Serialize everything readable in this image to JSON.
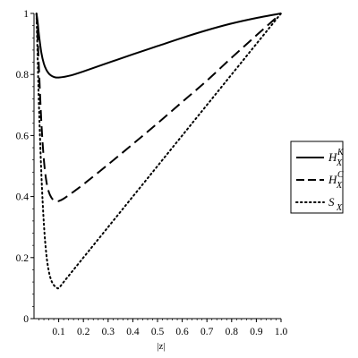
{
  "chart_data": {
    "type": "line",
    "title": "",
    "xlabel": "|z|",
    "ylabel": "",
    "xlim": [
      0,
      1.0
    ],
    "ylim": [
      0,
      1
    ],
    "grid": false,
    "legend_position": "right",
    "x_ticks": [
      "0.1",
      "0.2",
      "0.3",
      "0.4",
      "0.5",
      "0.6",
      "0.7",
      "0.8",
      "0.9",
      "1.0"
    ],
    "y_ticks": [
      "0",
      "0.2",
      "0.4",
      "0.6",
      "0.8",
      "1"
    ],
    "x_tick_values": [
      0.1,
      0.2,
      0.3,
      0.4,
      0.5,
      0.6,
      0.7,
      0.8,
      0.9,
      1.0
    ],
    "y_tick_values": [
      0,
      0.2,
      0.4,
      0.6,
      0.8,
      1
    ],
    "series": [
      {
        "name": "H_X^K",
        "legend": {
          "base": "H",
          "sub": "X",
          "sup": "K"
        },
        "style": "solid",
        "x": [
          0.01,
          0.015,
          0.02,
          0.03,
          0.04,
          0.05,
          0.06,
          0.07,
          0.08,
          0.09,
          0.1,
          0.12,
          0.15,
          0.2,
          0.3,
          0.4,
          0.5,
          0.6,
          0.7,
          0.8,
          0.9,
          1.0
        ],
        "y": [
          1.0,
          0.97,
          0.93,
          0.87,
          0.835,
          0.815,
          0.803,
          0.796,
          0.792,
          0.79,
          0.79,
          0.792,
          0.797,
          0.81,
          0.838,
          0.866,
          0.893,
          0.92,
          0.945,
          0.967,
          0.985,
          1.0
        ]
      },
      {
        "name": "H_X^C",
        "legend": {
          "base": "H",
          "sub": "X",
          "sup": "C"
        },
        "style": "dashed",
        "x": [
          0.01,
          0.015,
          0.02,
          0.03,
          0.04,
          0.05,
          0.06,
          0.07,
          0.08,
          0.09,
          0.1,
          0.12,
          0.15,
          0.2,
          0.3,
          0.4,
          0.5,
          0.6,
          0.7,
          0.8,
          0.9,
          1.0
        ],
        "y": [
          1.0,
          0.92,
          0.82,
          0.64,
          0.52,
          0.45,
          0.415,
          0.397,
          0.388,
          0.385,
          0.385,
          0.393,
          0.41,
          0.44,
          0.505,
          0.572,
          0.64,
          0.71,
          0.78,
          0.855,
          0.928,
          1.0
        ]
      },
      {
        "name": "S_X",
        "legend": {
          "base": "S",
          "sub": "X",
          "sup": ""
        },
        "style": "dotted",
        "x": [
          0.01,
          0.015,
          0.02,
          0.03,
          0.04,
          0.05,
          0.06,
          0.07,
          0.08,
          0.09,
          0.1,
          0.12,
          0.15,
          0.2,
          0.3,
          0.4,
          0.5,
          0.6,
          0.7,
          0.8,
          0.9,
          1.0
        ],
        "y": [
          1.0,
          0.85,
          0.7,
          0.47,
          0.31,
          0.21,
          0.155,
          0.125,
          0.11,
          0.103,
          0.1,
          0.12,
          0.15,
          0.2,
          0.3,
          0.4,
          0.5,
          0.6,
          0.7,
          0.8,
          0.9,
          1.0
        ]
      }
    ]
  }
}
